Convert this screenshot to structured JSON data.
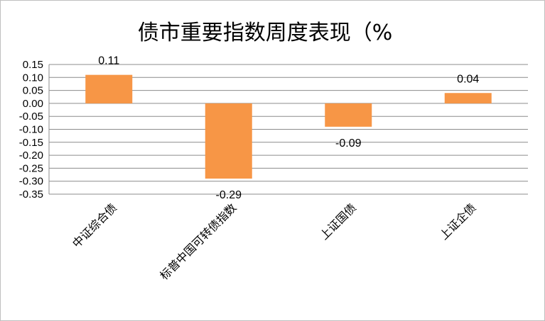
{
  "chart_data": {
    "type": "bar",
    "title": "债市重要指数周度表现（%",
    "categories": [
      "中证综合债",
      "标普中国可转债指数",
      "上证国债",
      "上证企债"
    ],
    "values": [
      0.11,
      -0.29,
      -0.09,
      0.04
    ],
    "data_labels": [
      "0.11",
      "-0.29",
      "-0.09",
      "0.04"
    ],
    "y_ticks": [
      "0.15",
      "0.10",
      "0.05",
      "0.00",
      "-0.05",
      "-0.10",
      "-0.15",
      "-0.20",
      "-0.25",
      "-0.30",
      "-0.35"
    ],
    "ylim": [
      -0.35,
      0.15
    ],
    "grid": true,
    "legend": "none",
    "bar_color": "#F79646"
  }
}
